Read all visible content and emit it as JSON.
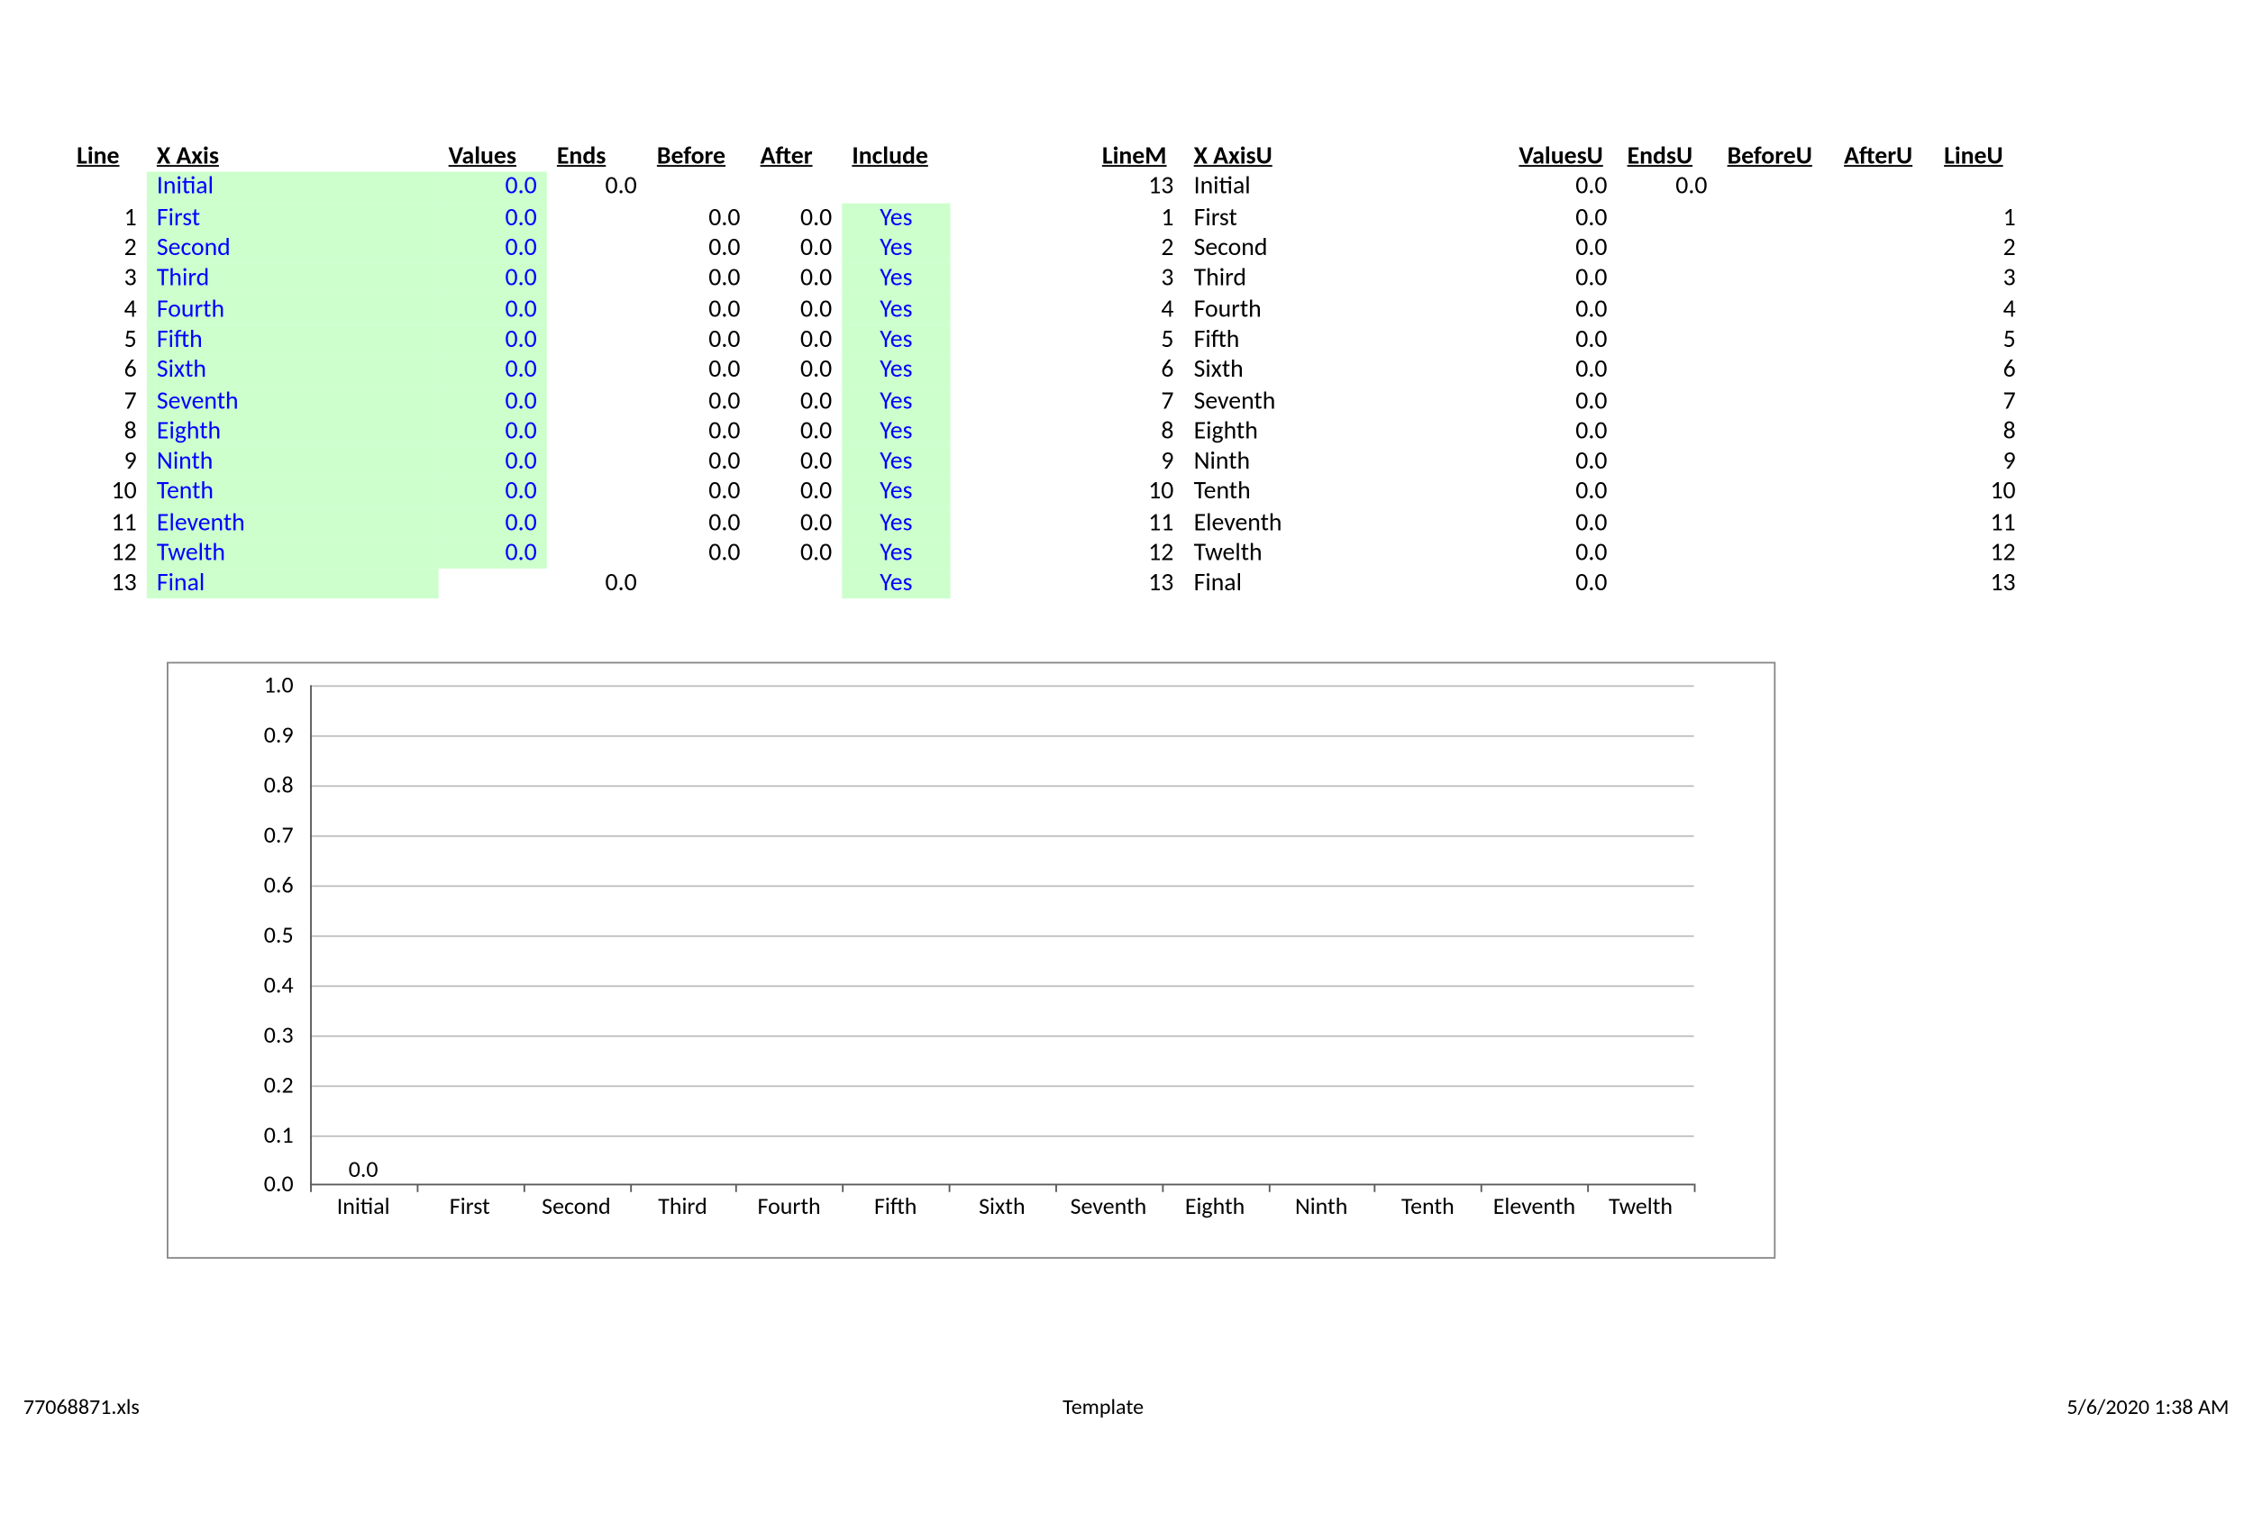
{
  "headers": {
    "left": [
      "Line",
      "X Axis",
      "Values",
      "Ends",
      "Before",
      "After",
      "Include"
    ],
    "right": [
      "LineM",
      "X AxisU",
      "ValuesU",
      "EndsU",
      "BeforeU",
      "AfterU",
      "LineU"
    ]
  },
  "rows_left": [
    {
      "line": "",
      "xaxis": "Initial",
      "values": "0.0",
      "ends": "0.0",
      "before": "",
      "after": "",
      "include": ""
    },
    {
      "line": "1",
      "xaxis": "First",
      "values": "0.0",
      "ends": "",
      "before": "0.0",
      "after": "0.0",
      "include": "Yes"
    },
    {
      "line": "2",
      "xaxis": "Second",
      "values": "0.0",
      "ends": "",
      "before": "0.0",
      "after": "0.0",
      "include": "Yes"
    },
    {
      "line": "3",
      "xaxis": "Third",
      "values": "0.0",
      "ends": "",
      "before": "0.0",
      "after": "0.0",
      "include": "Yes"
    },
    {
      "line": "4",
      "xaxis": "Fourth",
      "values": "0.0",
      "ends": "",
      "before": "0.0",
      "after": "0.0",
      "include": "Yes"
    },
    {
      "line": "5",
      "xaxis": "Fifth",
      "values": "0.0",
      "ends": "",
      "before": "0.0",
      "after": "0.0",
      "include": "Yes"
    },
    {
      "line": "6",
      "xaxis": "Sixth",
      "values": "0.0",
      "ends": "",
      "before": "0.0",
      "after": "0.0",
      "include": "Yes"
    },
    {
      "line": "7",
      "xaxis": "Seventh",
      "values": "0.0",
      "ends": "",
      "before": "0.0",
      "after": "0.0",
      "include": "Yes"
    },
    {
      "line": "8",
      "xaxis": "Eighth",
      "values": "0.0",
      "ends": "",
      "before": "0.0",
      "after": "0.0",
      "include": "Yes"
    },
    {
      "line": "9",
      "xaxis": "Ninth",
      "values": "0.0",
      "ends": "",
      "before": "0.0",
      "after": "0.0",
      "include": "Yes"
    },
    {
      "line": "10",
      "xaxis": "Tenth",
      "values": "0.0",
      "ends": "",
      "before": "0.0",
      "after": "0.0",
      "include": "Yes"
    },
    {
      "line": "11",
      "xaxis": "Eleventh",
      "values": "0.0",
      "ends": "",
      "before": "0.0",
      "after": "0.0",
      "include": "Yes"
    },
    {
      "line": "12",
      "xaxis": "Twelth",
      "values": "0.0",
      "ends": "",
      "before": "0.0",
      "after": "0.0",
      "include": "Yes"
    },
    {
      "line": "13",
      "xaxis": "Final",
      "values": "",
      "ends": "0.0",
      "before": "",
      "after": "",
      "include": "Yes"
    }
  ],
  "rows_right": [
    {
      "linem": "13",
      "xaxisu": "Initial",
      "valuesu": "0.0",
      "endsu": "0.0",
      "beforeu": "",
      "afteru": "",
      "lineu": ""
    },
    {
      "linem": "1",
      "xaxisu": "First",
      "valuesu": "0.0",
      "endsu": "",
      "beforeu": "",
      "afteru": "",
      "lineu": "1"
    },
    {
      "linem": "2",
      "xaxisu": "Second",
      "valuesu": "0.0",
      "endsu": "",
      "beforeu": "",
      "afteru": "",
      "lineu": "2"
    },
    {
      "linem": "3",
      "xaxisu": "Third",
      "valuesu": "0.0",
      "endsu": "",
      "beforeu": "",
      "afteru": "",
      "lineu": "3"
    },
    {
      "linem": "4",
      "xaxisu": "Fourth",
      "valuesu": "0.0",
      "endsu": "",
      "beforeu": "",
      "afteru": "",
      "lineu": "4"
    },
    {
      "linem": "5",
      "xaxisu": "Fifth",
      "valuesu": "0.0",
      "endsu": "",
      "beforeu": "",
      "afteru": "",
      "lineu": "5"
    },
    {
      "linem": "6",
      "xaxisu": "Sixth",
      "valuesu": "0.0",
      "endsu": "",
      "beforeu": "",
      "afteru": "",
      "lineu": "6"
    },
    {
      "linem": "7",
      "xaxisu": "Seventh",
      "valuesu": "0.0",
      "endsu": "",
      "beforeu": "",
      "afteru": "",
      "lineu": "7"
    },
    {
      "linem": "8",
      "xaxisu": "Eighth",
      "valuesu": "0.0",
      "endsu": "",
      "beforeu": "",
      "afteru": "",
      "lineu": "8"
    },
    {
      "linem": "9",
      "xaxisu": "Ninth",
      "valuesu": "0.0",
      "endsu": "",
      "beforeu": "",
      "afteru": "",
      "lineu": "9"
    },
    {
      "linem": "10",
      "xaxisu": "Tenth",
      "valuesu": "0.0",
      "endsu": "",
      "beforeu": "",
      "afteru": "",
      "lineu": "10"
    },
    {
      "linem": "11",
      "xaxisu": "Eleventh",
      "valuesu": "0.0",
      "endsu": "",
      "beforeu": "",
      "afteru": "",
      "lineu": "11"
    },
    {
      "linem": "12",
      "xaxisu": "Twelth",
      "valuesu": "0.0",
      "endsu": "",
      "beforeu": "",
      "afteru": "",
      "lineu": "12"
    },
    {
      "linem": "13",
      "xaxisu": "Final",
      "valuesu": "0.0",
      "endsu": "",
      "beforeu": "",
      "afteru": "",
      "lineu": "13"
    }
  ],
  "chart": {
    "type": "waterfall",
    "ylim": [
      0.0,
      1.0
    ],
    "ytick_step": 0.1,
    "yticks": [
      "0.0",
      "0.1",
      "0.2",
      "0.3",
      "0.4",
      "0.5",
      "0.6",
      "0.7",
      "0.8",
      "0.9",
      "1.0"
    ],
    "categories": [
      "Initial",
      "First",
      "Second",
      "Third",
      "Fourth",
      "Fifth",
      "Sixth",
      "Seventh",
      "Eighth",
      "Ninth",
      "Tenth",
      "Eleventh",
      "Twelth"
    ],
    "grid_color": "#bfbfbf",
    "axis_color": "#595959",
    "border_color": "#888888",
    "background_color": "#ffffff",
    "label_fontsize": 14,
    "data_label": {
      "text": "0.0",
      "category_index": 0
    }
  },
  "colors": {
    "input_text": "#0000ff",
    "input_bg": "#ccffcc",
    "text": "#000000"
  },
  "footer": {
    "left": "77068871.xls",
    "center": "Template",
    "right": "5/6/2020 1:38 AM"
  }
}
